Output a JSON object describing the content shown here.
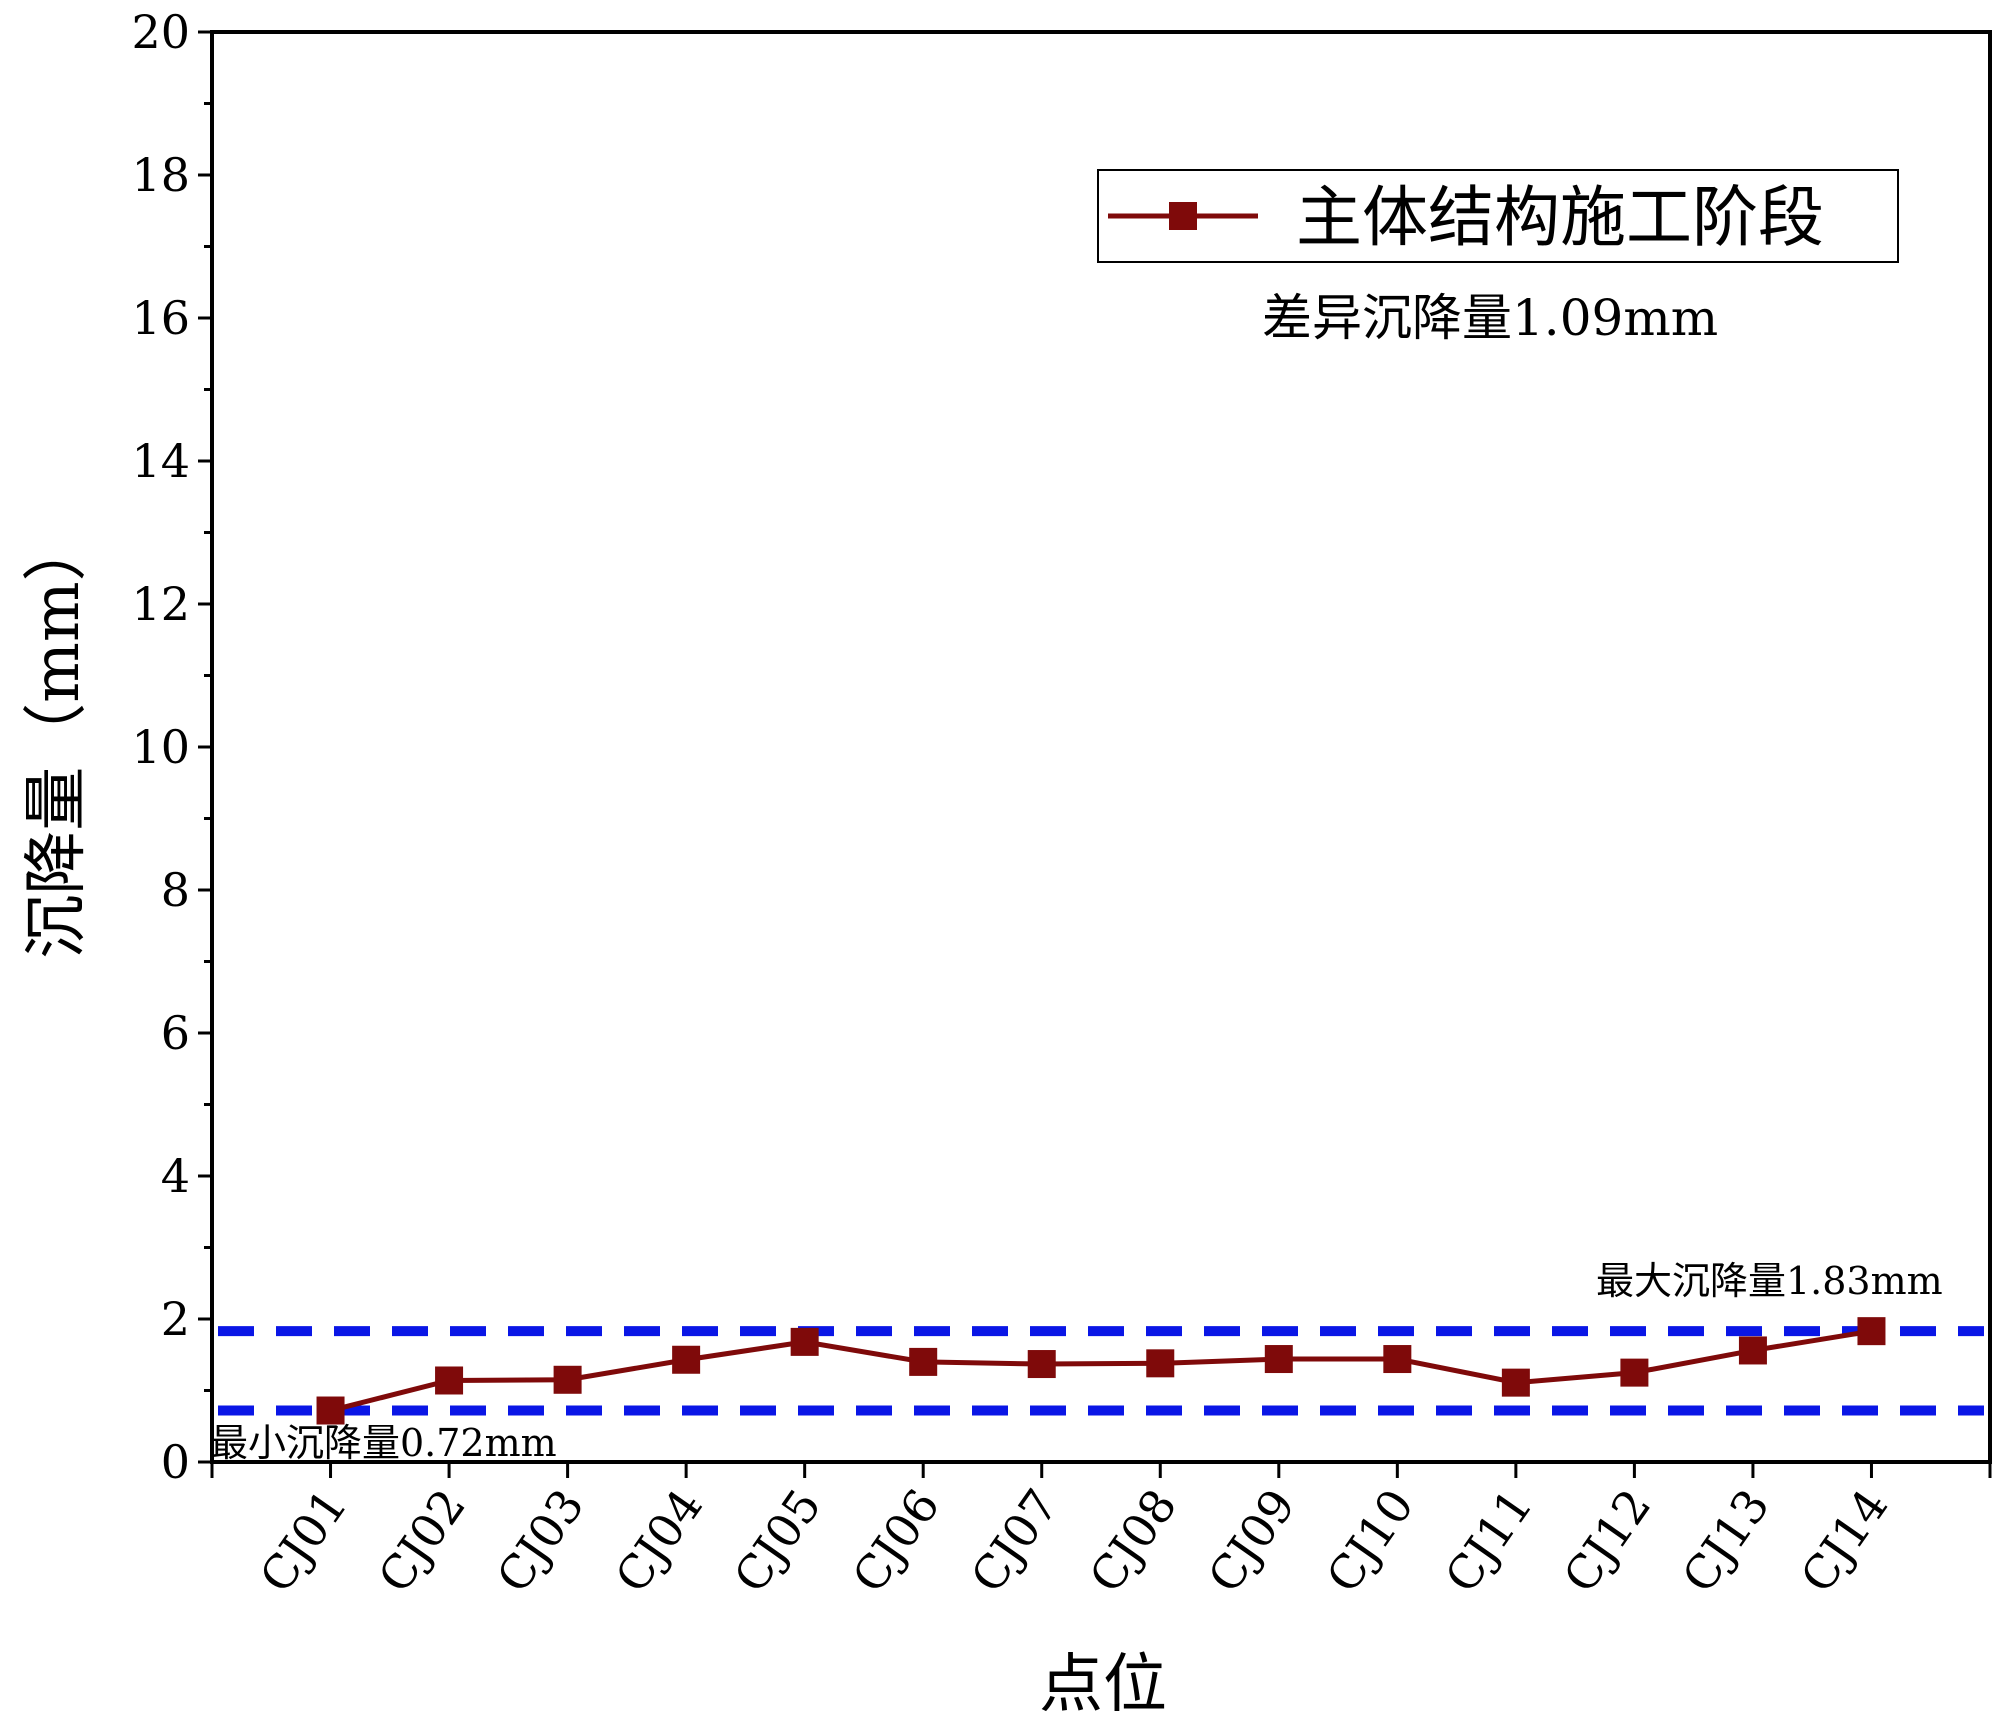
{
  "chart_data": {
    "type": "line",
    "xlabel": "点位",
    "ylabel": "沉降量（mm）",
    "ylim": [
      0,
      20
    ],
    "yticks": [
      0,
      2,
      4,
      6,
      8,
      10,
      12,
      14,
      16,
      18,
      20
    ],
    "categories": [
      "CJ01",
      "CJ02",
      "CJ03",
      "CJ04",
      "CJ05",
      "CJ06",
      "CJ07",
      "CJ08",
      "CJ09",
      "CJ10",
      "CJ11",
      "CJ12",
      "CJ13",
      "CJ14"
    ],
    "series": [
      {
        "name": "主体结构施工阶段",
        "color": "#7f0a0a",
        "marker": "square",
        "values": [
          0.72,
          1.14,
          1.15,
          1.43,
          1.68,
          1.4,
          1.37,
          1.38,
          1.44,
          1.44,
          1.11,
          1.25,
          1.56,
          1.83
        ]
      }
    ],
    "reference_lines": {
      "color": "#0a16e6",
      "max_value": 1.83,
      "min_value": 0.72
    },
    "annotations": {
      "difference": "差异沉降量1.09mm",
      "max": "最大沉降量1.83mm",
      "min": "最小沉降量0.72mm"
    },
    "legend_position": "top-right",
    "grid": false
  }
}
